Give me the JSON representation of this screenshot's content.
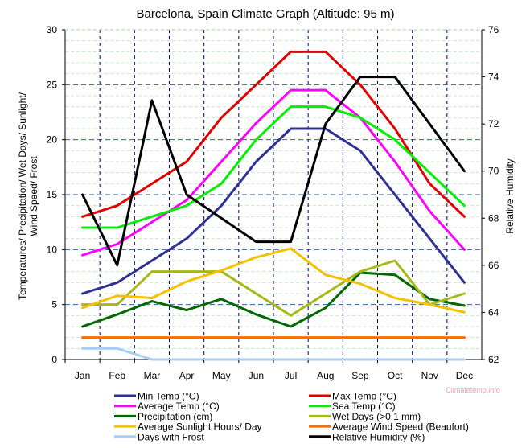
{
  "chart_data": {
    "type": "line",
    "title": "Barcelona, Spain Climate Graph (Altitude: 95 m)",
    "ylabel_left": [
      "Temperatures/ Precipitation/ Wet Days/ Sunlight/",
      "Wind Speed/ Frost"
    ],
    "ylabel_right": "Relative Humidity",
    "watermark": "Climatetemp.info",
    "categories": [
      "Jan",
      "Feb",
      "Mar",
      "Apr",
      "May",
      "Jun",
      "Jul",
      "Aug",
      "Sep",
      "Oct",
      "Nov",
      "Dec"
    ],
    "ylim_left": [
      0,
      30
    ],
    "ylim_right": [
      62,
      76
    ],
    "yticks_left": [
      "0",
      "5",
      "10",
      "15",
      "20",
      "25",
      "30"
    ],
    "yticks_right": [
      "62",
      "64",
      "66",
      "68",
      "70",
      "72",
      "74",
      "76"
    ],
    "grid": true,
    "legend_position": "bottom",
    "series": [
      {
        "name": "Min Temp (°C)",
        "axis": "left",
        "color": "#2e3192",
        "values": [
          6,
          7,
          9,
          11,
          14,
          18,
          21,
          21,
          19,
          15,
          11,
          7
        ]
      },
      {
        "name": "Max Temp (°C)",
        "axis": "left",
        "color": "#e00000",
        "values": [
          13,
          14,
          16,
          18,
          22,
          25,
          28,
          28,
          25,
          21,
          16,
          13
        ]
      },
      {
        "name": "Average Temp (°C)",
        "axis": "left",
        "color": "#ff00ff",
        "values": [
          9.5,
          10.5,
          12.5,
          14.5,
          18,
          21.5,
          24.5,
          24.5,
          22,
          18,
          13.5,
          10
        ]
      },
      {
        "name": "Sea Temp (°C)",
        "axis": "left",
        "color": "#00ee00",
        "values": [
          12,
          12,
          13,
          14,
          16,
          20,
          23,
          23,
          22,
          20,
          17,
          14
        ]
      },
      {
        "name": "Precipitation (cm)",
        "axis": "left",
        "color": "#006600",
        "values": [
          3,
          4.1,
          5.3,
          4.5,
          5.5,
          4.1,
          3,
          4.7,
          7.9,
          7.7,
          5.5,
          4.9
        ]
      },
      {
        "name": "Wet Days (>0.1 mm)",
        "axis": "left",
        "color": "#a6b818",
        "values": [
          5,
          5,
          8,
          8,
          8,
          6,
          4,
          6,
          8,
          9,
          5,
          6
        ]
      },
      {
        "name": "Average Sunlight Hours/ Day",
        "axis": "left",
        "color": "#f5c000",
        "values": [
          4.7,
          5.8,
          5.6,
          7.1,
          8.1,
          9.3,
          10.1,
          7.7,
          6.9,
          5.6,
          5,
          4.3
        ]
      },
      {
        "name": "Average Wind Speed (Beaufort)",
        "axis": "left",
        "color": "#f07000",
        "values": [
          2,
          2,
          2,
          2,
          2,
          2,
          2,
          2,
          2,
          2,
          2,
          2
        ]
      },
      {
        "name": "Days with Frost",
        "axis": "left",
        "color": "#a8cef5",
        "values": [
          1,
          1,
          0,
          0,
          0,
          0,
          0,
          0,
          0,
          0,
          0,
          0
        ]
      },
      {
        "name": "Relative Humidity (%)",
        "axis": "right",
        "color": "#000000",
        "values": [
          69,
          66,
          73,
          69,
          68,
          67,
          67,
          72,
          74,
          74,
          72,
          70
        ]
      }
    ]
  }
}
